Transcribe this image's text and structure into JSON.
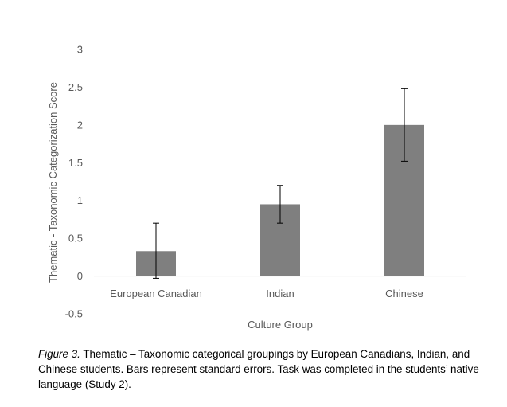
{
  "chart_data": {
    "type": "bar",
    "title": "",
    "xlabel": "Culture Group",
    "ylabel": "Thematic - Taxonomic Categorization Score",
    "categories": [
      "European Canadian",
      "Indian",
      "Chinese"
    ],
    "values": [
      0.33,
      0.95,
      2.0
    ],
    "error_bars": [
      {
        "low": -0.03,
        "high": 0.7
      },
      {
        "low": 0.7,
        "high": 1.2
      },
      {
        "low": 1.52,
        "high": 2.48
      }
    ],
    "ylim": [
      -0.5,
      3
    ],
    "yticks": [
      "3",
      "2.5",
      "2",
      "1.5",
      "1",
      "0.5",
      "0",
      "-0.5"
    ],
    "ytick_values": [
      3,
      2.5,
      2,
      1.5,
      1,
      0.5,
      0,
      -0.5
    ],
    "grid": false,
    "bar_color": "#7f7f7f",
    "axis_color": "#d9d9d9",
    "text_color": "#595959"
  },
  "caption": {
    "figure_label": "Figure 3.",
    "text": " Thematic – Taxonomic categorical groupings by European Canadians, Indian, and Chinese students. Bars represent standard errors.  Task was completed in the students’ native language (Study 2)."
  }
}
